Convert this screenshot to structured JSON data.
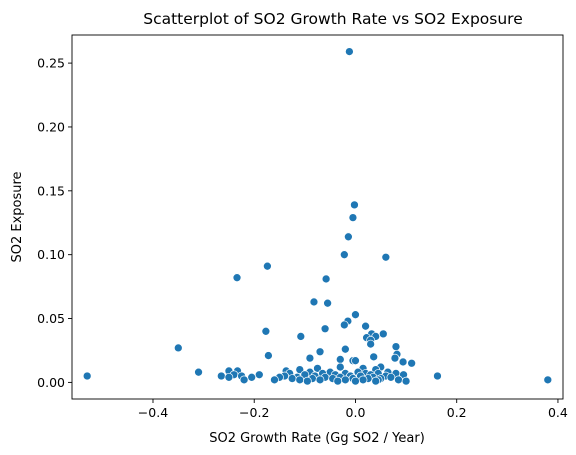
{
  "chart_data": {
    "type": "scatter",
    "title": "Scatterplot of SO2 Growth Rate vs SO2 Exposure",
    "xlabel": "SO2 Growth Rate (Gg SO2 / Year)",
    "ylabel": "SO2 Exposure",
    "xlim": [
      -0.56,
      0.41
    ],
    "ylim": [
      -0.013,
      0.272
    ],
    "xticks": [
      -0.4,
      -0.2,
      0.0,
      0.2,
      0.4
    ],
    "xtick_labels": [
      "−0.4",
      "−0.2",
      "0.0",
      "0.2",
      "0.4"
    ],
    "yticks": [
      0.0,
      0.05,
      0.1,
      0.15,
      0.2,
      0.25
    ],
    "ytick_labels": [
      "0.00",
      "0.05",
      "0.10",
      "0.15",
      "0.20",
      "0.25"
    ],
    "grid": false,
    "marker_color": "#1f77b4",
    "points": [
      {
        "x": -0.012,
        "y": 0.259
      },
      {
        "x": -0.002,
        "y": 0.139
      },
      {
        "x": -0.005,
        "y": 0.129
      },
      {
        "x": -0.014,
        "y": 0.114
      },
      {
        "x": -0.022,
        "y": 0.1
      },
      {
        "x": 0.06,
        "y": 0.098
      },
      {
        "x": -0.174,
        "y": 0.091
      },
      {
        "x": -0.234,
        "y": 0.082
      },
      {
        "x": -0.058,
        "y": 0.081
      },
      {
        "x": -0.082,
        "y": 0.063
      },
      {
        "x": -0.055,
        "y": 0.062
      },
      {
        "x": 0.0,
        "y": 0.053
      },
      {
        "x": -0.015,
        "y": 0.048
      },
      {
        "x": -0.022,
        "y": 0.045
      },
      {
        "x": 0.02,
        "y": 0.044
      },
      {
        "x": -0.06,
        "y": 0.042
      },
      {
        "x": -0.177,
        "y": 0.04
      },
      {
        "x": 0.032,
        "y": 0.038
      },
      {
        "x": 0.055,
        "y": 0.038
      },
      {
        "x": 0.04,
        "y": 0.036
      },
      {
        "x": -0.108,
        "y": 0.036
      },
      {
        "x": 0.022,
        "y": 0.035
      },
      {
        "x": 0.03,
        "y": 0.033
      },
      {
        "x": 0.03,
        "y": 0.03
      },
      {
        "x": 0.08,
        "y": 0.028
      },
      {
        "x": -0.35,
        "y": 0.027
      },
      {
        "x": -0.02,
        "y": 0.026
      },
      {
        "x": -0.07,
        "y": 0.024
      },
      {
        "x": 0.082,
        "y": 0.022
      },
      {
        "x": -0.172,
        "y": 0.021
      },
      {
        "x": 0.036,
        "y": 0.02
      },
      {
        "x": 0.078,
        "y": 0.019
      },
      {
        "x": -0.09,
        "y": 0.019
      },
      {
        "x": -0.03,
        "y": 0.018
      },
      {
        "x": -0.005,
        "y": 0.017
      },
      {
        "x": 0.0,
        "y": 0.017
      },
      {
        "x": 0.094,
        "y": 0.016
      },
      {
        "x": 0.111,
        "y": 0.015
      },
      {
        "x": 0.05,
        "y": 0.012
      },
      {
        "x": -0.03,
        "y": 0.012
      },
      {
        "x": 0.015,
        "y": 0.011
      },
      {
        "x": -0.075,
        "y": 0.011
      },
      {
        "x": -0.11,
        "y": 0.01
      },
      {
        "x": 0.04,
        "y": 0.01
      },
      {
        "x": -0.25,
        "y": 0.009
      },
      {
        "x": -0.233,
        "y": 0.009
      },
      {
        "x": -0.137,
        "y": 0.009
      },
      {
        "x": -0.31,
        "y": 0.008
      },
      {
        "x": -0.09,
        "y": 0.008
      },
      {
        "x": -0.05,
        "y": 0.008
      },
      {
        "x": 0.005,
        "y": 0.008
      },
      {
        "x": 0.064,
        "y": 0.008
      },
      {
        "x": -0.13,
        "y": 0.007
      },
      {
        "x": -0.065,
        "y": 0.007
      },
      {
        "x": -0.02,
        "y": 0.007
      },
      {
        "x": 0.02,
        "y": 0.007
      },
      {
        "x": 0.045,
        "y": 0.007
      },
      {
        "x": 0.08,
        "y": 0.007
      },
      {
        "x": -0.19,
        "y": 0.006
      },
      {
        "x": -0.24,
        "y": 0.006
      },
      {
        "x": -0.1,
        "y": 0.006
      },
      {
        "x": -0.04,
        "y": 0.006
      },
      {
        "x": 0.03,
        "y": 0.006
      },
      {
        "x": 0.095,
        "y": 0.006
      },
      {
        "x": -0.53,
        "y": 0.005
      },
      {
        "x": -0.265,
        "y": 0.005
      },
      {
        "x": -0.225,
        "y": 0.005
      },
      {
        "x": -0.14,
        "y": 0.005
      },
      {
        "x": -0.08,
        "y": 0.005
      },
      {
        "x": -0.01,
        "y": 0.005
      },
      {
        "x": 0.01,
        "y": 0.005
      },
      {
        "x": 0.06,
        "y": 0.005
      },
      {
        "x": 0.162,
        "y": 0.005
      },
      {
        "x": -0.25,
        "y": 0.004
      },
      {
        "x": -0.205,
        "y": 0.004
      },
      {
        "x": -0.15,
        "y": 0.004
      },
      {
        "x": -0.115,
        "y": 0.004
      },
      {
        "x": -0.06,
        "y": 0.004
      },
      {
        "x": -0.03,
        "y": 0.004
      },
      {
        "x": 0.035,
        "y": 0.004
      },
      {
        "x": 0.07,
        "y": 0.004
      },
      {
        "x": -0.125,
        "y": 0.003
      },
      {
        "x": -0.085,
        "y": 0.003
      },
      {
        "x": -0.045,
        "y": 0.003
      },
      {
        "x": -0.005,
        "y": 0.003
      },
      {
        "x": 0.025,
        "y": 0.003
      },
      {
        "x": 0.05,
        "y": 0.003
      },
      {
        "x": -0.22,
        "y": 0.002
      },
      {
        "x": -0.16,
        "y": 0.002
      },
      {
        "x": -0.11,
        "y": 0.002
      },
      {
        "x": -0.07,
        "y": 0.002
      },
      {
        "x": -0.02,
        "y": 0.002
      },
      {
        "x": 0.015,
        "y": 0.002
      },
      {
        "x": 0.045,
        "y": 0.002
      },
      {
        "x": 0.085,
        "y": 0.002
      },
      {
        "x": 0.38,
        "y": 0.002
      },
      {
        "x": -0.095,
        "y": 0.001
      },
      {
        "x": -0.035,
        "y": 0.001
      },
      {
        "x": 0.0,
        "y": 0.001
      },
      {
        "x": 0.04,
        "y": 0.001
      },
      {
        "x": 0.1,
        "y": 0.001
      }
    ]
  }
}
